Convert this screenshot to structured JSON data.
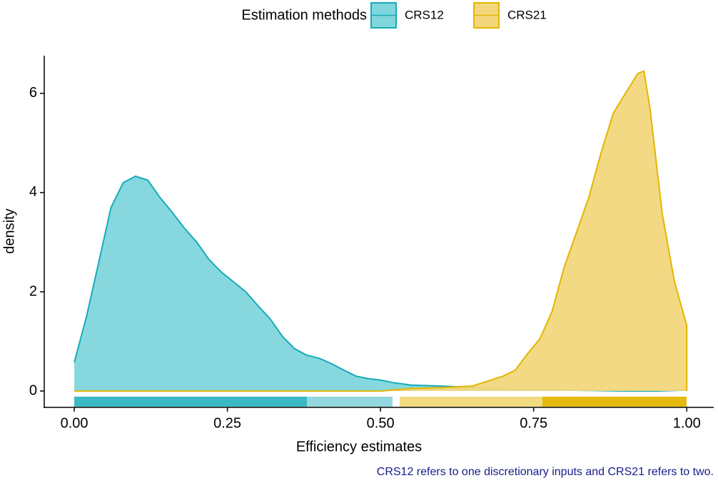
{
  "chart_data": {
    "type": "density",
    "legend_title": "Estimation methods",
    "legend_position": "top",
    "xlabel": "Efficiency estimates",
    "ylabel": "density",
    "caption": "CRS12 refers to one discretionary inputs and CRS21 refers to two.",
    "xlim": [
      -0.049,
      1.044
    ],
    "ylim": [
      -0.33,
      6.76
    ],
    "xticks": [
      {
        "value": 0,
        "label": "0.00"
      },
      {
        "value": 0.25,
        "label": "0.25"
      },
      {
        "value": 0.5,
        "label": "0.50"
      },
      {
        "value": 0.75,
        "label": "0.75"
      },
      {
        "value": 1,
        "label": "1.00"
      }
    ],
    "yticks": [
      0,
      2,
      4,
      6
    ],
    "series": [
      {
        "name": "CRS12",
        "color": "#17abb8",
        "fill": "#7fd6dc",
        "x": [
          0,
          0.02,
          0.04,
          0.06,
          0.08,
          0.1,
          0.12,
          0.14,
          0.16,
          0.18,
          0.2,
          0.22,
          0.24,
          0.26,
          0.28,
          0.3,
          0.32,
          0.34,
          0.36,
          0.38,
          0.4,
          0.42,
          0.44,
          0.46,
          0.48,
          0.5,
          0.52,
          0.55,
          0.6,
          0.65,
          0.7,
          0.75,
          0.8,
          0.85,
          0.9,
          0.95,
          1
        ],
        "values": [
          0.58,
          1.5,
          2.6,
          3.7,
          4.2,
          4.33,
          4.25,
          3.9,
          3.6,
          3.28,
          3.0,
          2.65,
          2.4,
          2.2,
          2.0,
          1.72,
          1.45,
          1.1,
          0.85,
          0.72,
          0.66,
          0.55,
          0.42,
          0.3,
          0.25,
          0.22,
          0.17,
          0.12,
          0.1,
          0.07,
          0.04,
          0.03,
          0.02,
          0.01,
          0,
          0,
          0.02
        ]
      },
      {
        "name": "CRS21",
        "color": "#e3b600",
        "fill": "#f2d77c",
        "x": [
          0,
          0.1,
          0.2,
          0.3,
          0.4,
          0.5,
          0.55,
          0.6,
          0.65,
          0.68,
          0.7,
          0.72,
          0.74,
          0.76,
          0.78,
          0.8,
          0.82,
          0.84,
          0.86,
          0.88,
          0.9,
          0.92,
          0.93,
          0.94,
          0.96,
          0.98,
          1
        ],
        "values": [
          0,
          0,
          0,
          0,
          0,
          0,
          0.05,
          0.07,
          0.1,
          0.22,
          0.3,
          0.42,
          0.75,
          1.05,
          1.6,
          2.5,
          3.2,
          3.9,
          4.8,
          5.6,
          6.0,
          6.4,
          6.45,
          5.7,
          3.57,
          2.2,
          1.32
        ]
      }
    ]
  }
}
